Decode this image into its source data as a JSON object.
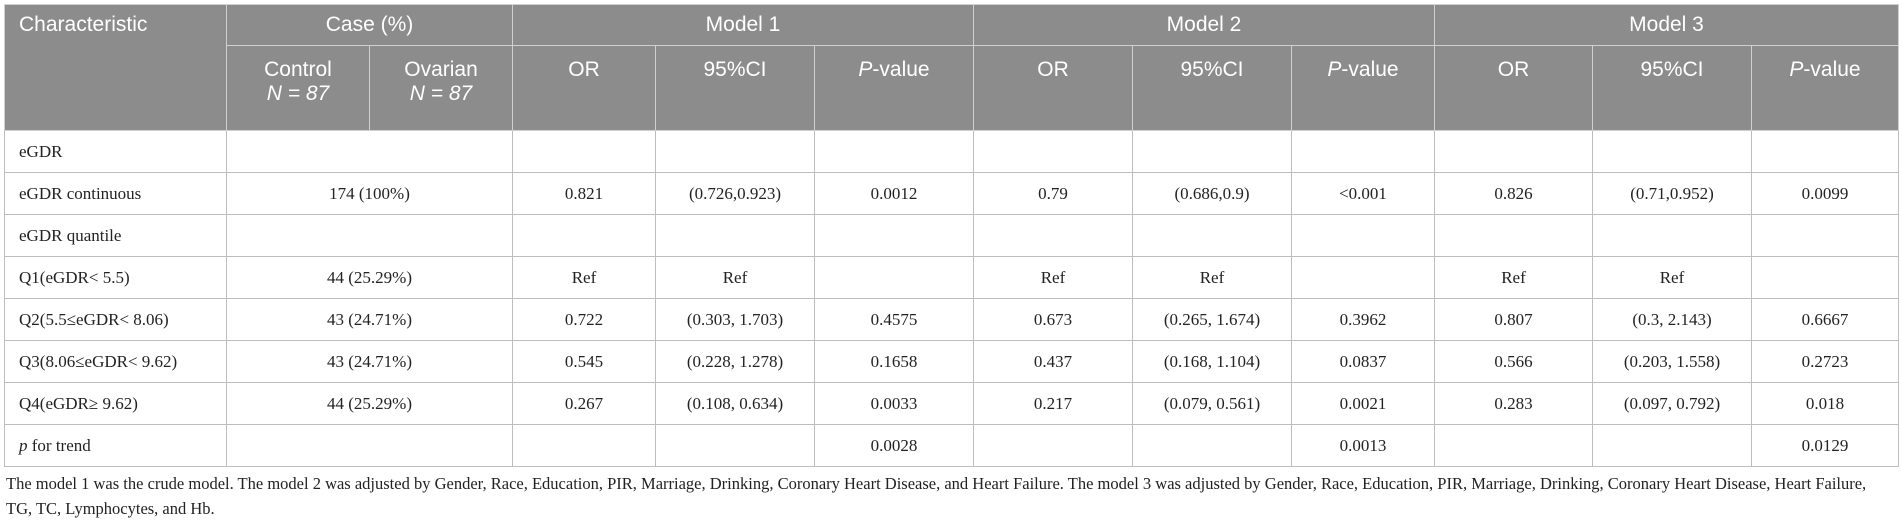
{
  "header": {
    "characteristic": "Characteristic",
    "case_pct": "Case (%)",
    "model1": "Model 1",
    "model2": "Model 2",
    "model3": "Model 3",
    "control": "Control",
    "control_n": "N = 87",
    "ovarian": "Ovarian",
    "ovarian_n": "N = 87",
    "or": "OR",
    "ci": "95%CI",
    "p_italic": "P",
    "p_rest": "-value"
  },
  "rows": [
    {
      "label": "eGDR",
      "case": "",
      "m1": [
        "",
        "",
        ""
      ],
      "m2": [
        "",
        "",
        ""
      ],
      "m3": [
        "",
        "",
        ""
      ]
    },
    {
      "label": "eGDR continuous",
      "case": "174 (100%)",
      "m1": [
        "0.821",
        "(0.726,0.923)",
        "0.0012"
      ],
      "m2": [
        "0.79",
        "(0.686,0.9)",
        "<0.001"
      ],
      "m3": [
        "0.826",
        "(0.71,0.952)",
        "0.0099"
      ]
    },
    {
      "label": "eGDR quantile",
      "case": "",
      "m1": [
        "",
        "",
        ""
      ],
      "m2": [
        "",
        "",
        ""
      ],
      "m3": [
        "",
        "",
        ""
      ]
    },
    {
      "label": "Q1(eGDR< 5.5)",
      "case": "44 (25.29%)",
      "m1": [
        "Ref",
        "Ref",
        ""
      ],
      "m2": [
        "Ref",
        "Ref",
        ""
      ],
      "m3": [
        "Ref",
        "Ref",
        ""
      ]
    },
    {
      "label": "Q2(5.5≤eGDR< 8.06)",
      "case": "43 (24.71%)",
      "m1": [
        "0.722",
        "(0.303, 1.703)",
        "0.4575"
      ],
      "m2": [
        "0.673",
        "(0.265, 1.674)",
        "0.3962"
      ],
      "m3": [
        "0.807",
        "(0.3, 2.143)",
        "0.6667"
      ]
    },
    {
      "label": "Q3(8.06≤eGDR< 9.62)",
      "case": "43 (24.71%)",
      "m1": [
        "0.545",
        "(0.228, 1.278)",
        "0.1658"
      ],
      "m2": [
        "0.437",
        "(0.168, 1.104)",
        "0.0837"
      ],
      "m3": [
        "0.566",
        "(0.203, 1.558)",
        "0.2723"
      ]
    },
    {
      "label": "Q4(eGDR≥ 9.62)",
      "case": "44 (25.29%)",
      "m1": [
        "0.267",
        "(0.108, 0.634)",
        "0.0033"
      ],
      "m2": [
        "0.217",
        "(0.079, 0.561)",
        "0.0021"
      ],
      "m3": [
        "0.283",
        "(0.097, 0.792)",
        "0.018"
      ]
    },
    {
      "label_italic": "p",
      "label_rest": " for trend",
      "case": "",
      "m1": [
        "",
        "",
        "0.0028"
      ],
      "m2": [
        "",
        "",
        "0.0013"
      ],
      "m3": [
        "",
        "",
        "0.0129"
      ]
    }
  ],
  "footnote": "The model 1 was the crude model. The model 2 was adjusted by Gender, Race, Education, PIR, Marriage, Drinking, Coronary Heart Disease, and Heart Failure. The model 3 was adjusted by Gender, Race, Education, PIR, Marriage, Drinking, Coronary Heart Disease, Heart Failure, TG, TC, Lymphocytes, and Hb."
}
